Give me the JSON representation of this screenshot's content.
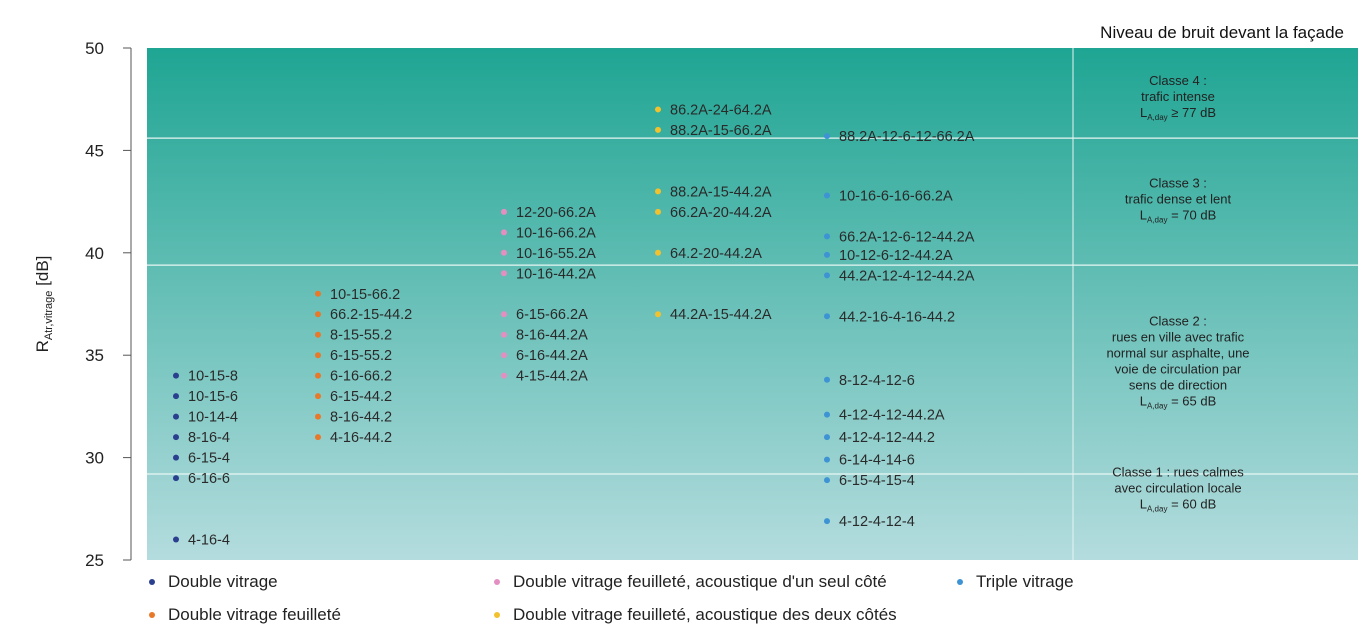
{
  "chart_data": {
    "type": "scatter",
    "title": "Niveau de bruit devant la façade",
    "ylabel": {
      "main": "R",
      "sub": "Atr,vitrage",
      "unit": " [dB]"
    },
    "ylim": [
      25,
      50
    ],
    "yticks": [
      "25",
      "30",
      "35",
      "40",
      "45",
      "50"
    ],
    "colors": {
      "bg_top": "#1fa593",
      "bg_bottom": "#b4dcde",
      "series": [
        "#2b3f8f",
        "#e8782a",
        "#e48fc2",
        "#f2c12e",
        "#3e93d4"
      ]
    },
    "series": [
      {
        "name": "Double vitrage",
        "points": [
          {
            "label": "10-15-8",
            "y": 34
          },
          {
            "label": "10-15-6",
            "y": 33
          },
          {
            "label": "10-14-4",
            "y": 32
          },
          {
            "label": "8-16-4",
            "y": 31
          },
          {
            "label": "6-15-4",
            "y": 30
          },
          {
            "label": "6-16-6",
            "y": 29
          },
          {
            "label": "4-16-4",
            "y": 26
          }
        ]
      },
      {
        "name": "Double vitrage feuilleté",
        "points": [
          {
            "label": "10-15-66.2",
            "y": 38
          },
          {
            "label": "66.2-15-44.2",
            "y": 37
          },
          {
            "label": "8-15-55.2",
            "y": 36
          },
          {
            "label": "6-15-55.2",
            "y": 35
          },
          {
            "label": "6-16-66.2",
            "y": 34
          },
          {
            "label": "6-15-44.2",
            "y": 33
          },
          {
            "label": "8-16-44.2",
            "y": 32
          },
          {
            "label": "4-16-44.2",
            "y": 31
          }
        ]
      },
      {
        "name": "Double vitrage feuilleté, acoustique d'un seul côté",
        "points": [
          {
            "label": "12-20-66.2A",
            "y": 42
          },
          {
            "label": "10-16-66.2A",
            "y": 41
          },
          {
            "label": "10-16-55.2A",
            "y": 40
          },
          {
            "label": "10-16-44.2A",
            "y": 39
          },
          {
            "label": "6-15-66.2A",
            "y": 37
          },
          {
            "label": "8-16-44.2A",
            "y": 36
          },
          {
            "label": "6-16-44.2A",
            "y": 35
          },
          {
            "label": "4-15-44.2A",
            "y": 34
          }
        ]
      },
      {
        "name": "Double vitrage feuilleté, acoustique des deux côtés",
        "points": [
          {
            "label": "86.2A-24-64.2A",
            "y": 47
          },
          {
            "label": "88.2A-15-66.2A",
            "y": 46
          },
          {
            "label": "88.2A-15-44.2A",
            "y": 43
          },
          {
            "label": "66.2A-20-44.2A",
            "y": 42
          },
          {
            "label": "64.2-20-44.2A",
            "y": 40
          },
          {
            "label": "44.2A-15-44.2A",
            "y": 37
          }
        ]
      },
      {
        "name": "Triple vitrage",
        "points": [
          {
            "label": "88.2A-12-6-12-66.2A",
            "y": 45.7
          },
          {
            "label": "10-16-6-16-66.2A",
            "y": 42.8
          },
          {
            "label": "66.2A-12-6-12-44.2A",
            "y": 40.8
          },
          {
            "label": "10-12-6-12-44.2A",
            "y": 39.9
          },
          {
            "label": "44.2A-12-4-12-44.2A",
            "y": 38.9
          },
          {
            "label": "44.2-16-4-16-44.2",
            "y": 36.9
          },
          {
            "label": "8-12-4-12-6",
            "y": 33.8
          },
          {
            "label": "4-12-4-12-44.2A",
            "y": 32.1
          },
          {
            "label": "4-12-4-12-44.2",
            "y": 31.0
          },
          {
            "label": "6-14-4-14-6",
            "y": 29.9
          },
          {
            "label": "6-15-4-15-4",
            "y": 28.9
          },
          {
            "label": "4-12-4-12-4",
            "y": 26.9
          }
        ]
      }
    ],
    "bands": [
      29.2,
      39.4,
      45.6
    ],
    "classes": [
      {
        "lines": [
          "Classe 4 :",
          "trafic intense"
        ],
        "metric": "≥ 77 dB",
        "y": 47.6
      },
      {
        "lines": [
          "Classe 3 :",
          "trafic dense et lent"
        ],
        "metric": "= 70 dB",
        "y": 42.6
      },
      {
        "lines": [
          "Classe 2 :",
          "rues en ville avec trafic",
          "normal sur asphalte, une",
          "voie de circulation par",
          "sens de direction"
        ],
        "metric": "= 65 dB",
        "y": 34.7
      },
      {
        "lines": [
          "Classe 1 : rues calmes",
          "avec circulation locale"
        ],
        "metric": "= 60 dB",
        "y": 28.5
      }
    ],
    "metric_symbol": {
      "main": "L",
      "sub": "A,day"
    }
  }
}
